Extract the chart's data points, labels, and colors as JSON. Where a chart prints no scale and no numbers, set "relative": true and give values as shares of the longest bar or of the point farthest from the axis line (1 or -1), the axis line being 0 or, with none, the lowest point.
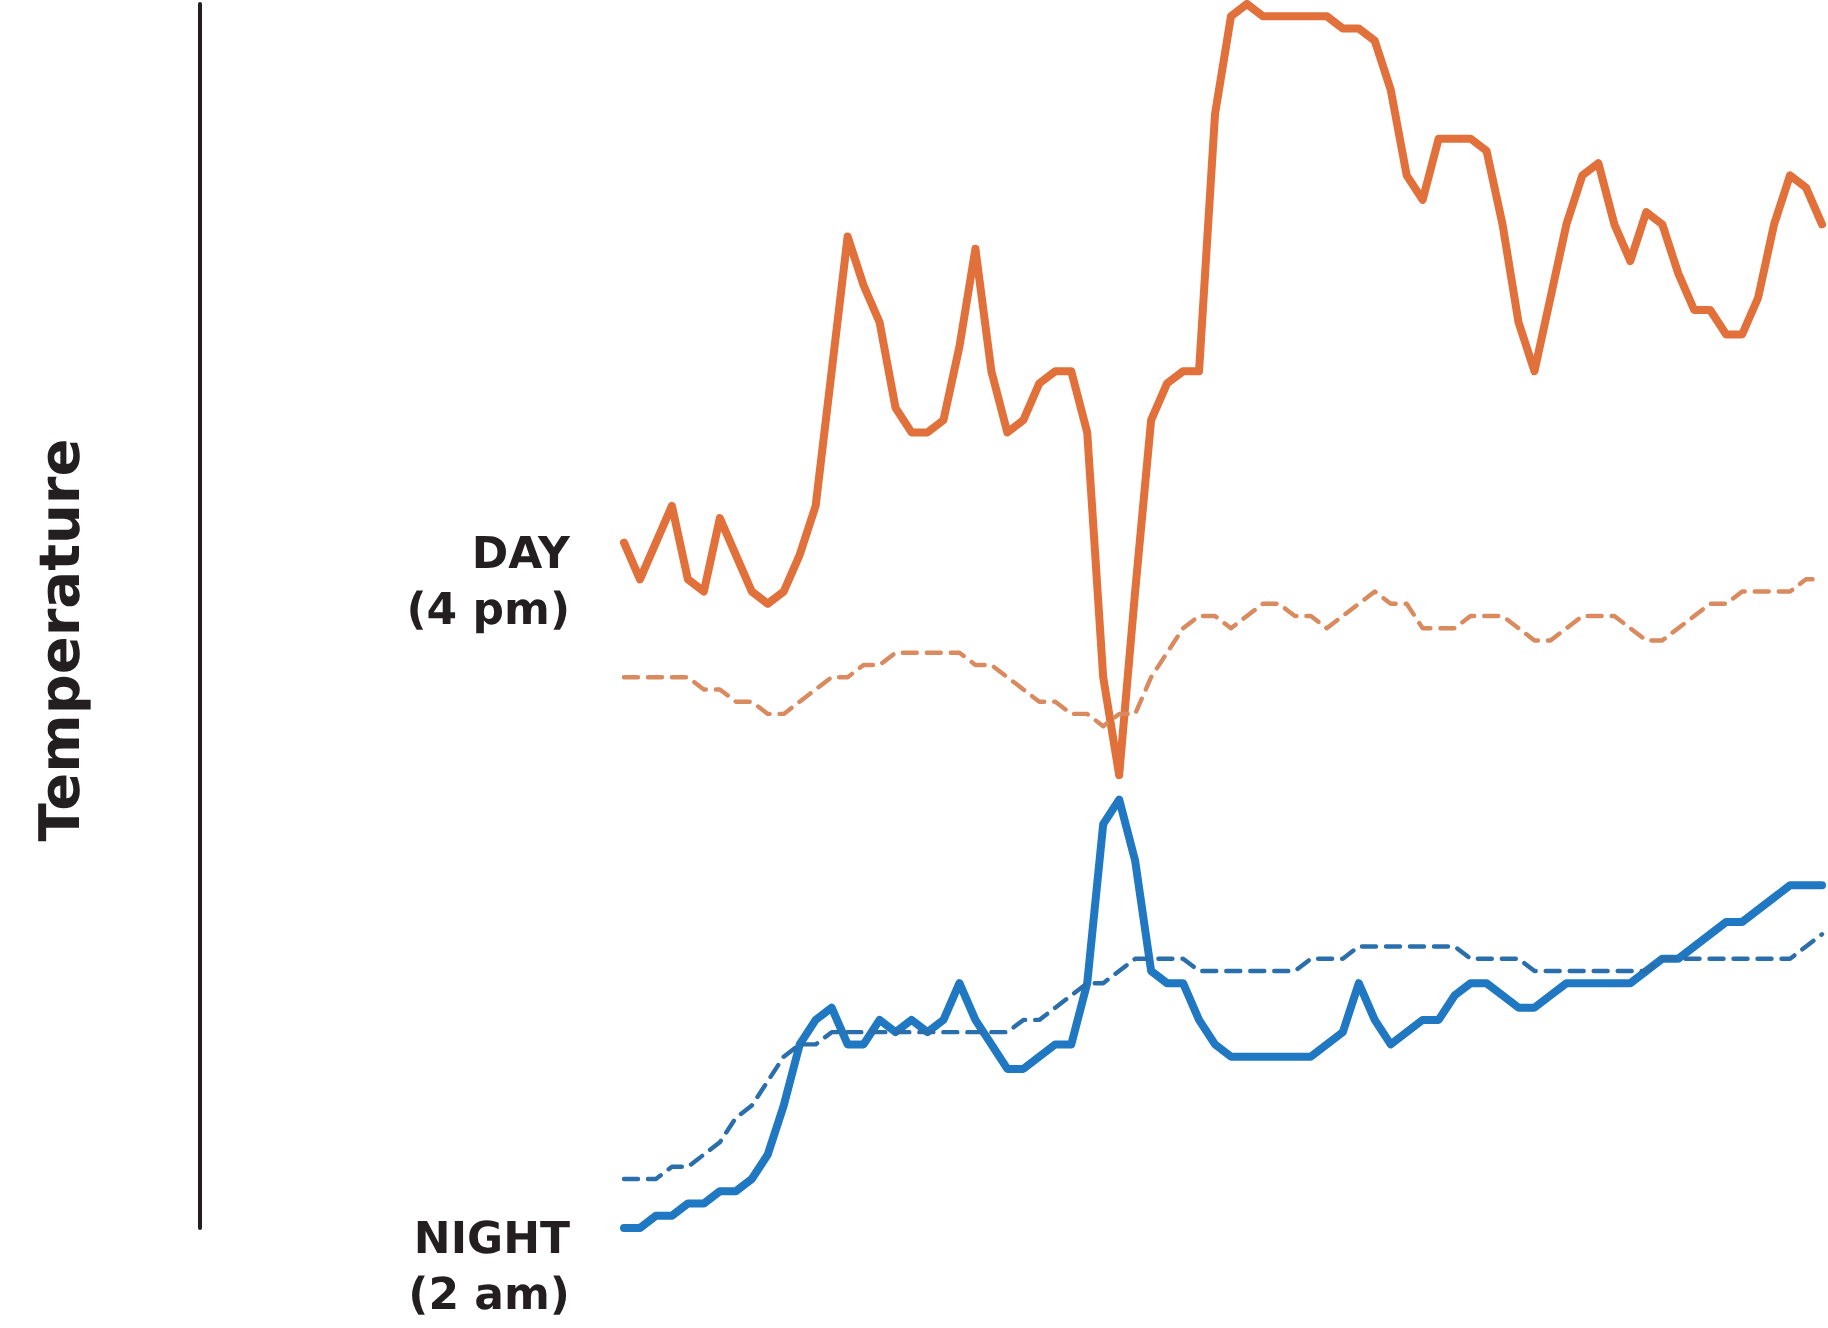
{
  "chart_data": {
    "type": "line",
    "relative": true,
    "annotations": [
      "Temperature"
    ],
    "legend": false,
    "marker": "none",
    "categories": [
      null,
      null,
      null,
      null,
      null,
      null,
      null,
      null,
      null,
      null,
      null,
      null,
      null,
      null,
      null,
      null,
      null,
      null,
      null,
      null,
      null,
      null,
      null,
      null,
      null,
      null,
      null,
      null,
      null,
      null,
      null,
      null,
      null,
      null,
      null,
      null,
      null,
      null,
      null,
      null,
      null,
      null,
      null,
      null,
      null,
      null,
      null,
      null,
      null,
      null,
      null,
      null,
      null,
      null,
      null,
      null,
      null,
      null,
      null,
      null,
      null,
      null,
      null,
      null,
      null,
      null,
      null,
      null,
      null,
      null,
      null,
      null,
      null,
      null,
      null,
      null
    ],
    "series": [
      {
        "name": "DAY\n(4 pm)",
        "color": "#e2703a",
        "line_style": "solid",
        "values": [
          0.56,
          0.53,
          0.56,
          0.59,
          0.53,
          0.52,
          0.58,
          0.55,
          0.52,
          0.51,
          0.52,
          0.55,
          0.59,
          0.7,
          0.81,
          0.77,
          0.74,
          0.67,
          0.65,
          0.65,
          0.66,
          0.72,
          0.8,
          0.7,
          0.65,
          0.66,
          0.69,
          0.7,
          0.7,
          0.65,
          0.45,
          0.37,
          0.52,
          0.66,
          0.69,
          0.7,
          0.7,
          0.91,
          0.99,
          1,
          0.99,
          0.99,
          0.99,
          0.99,
          0.99,
          0.98,
          0.98,
          0.97,
          0.93,
          0.86,
          0.84,
          0.89,
          0.89,
          0.89,
          0.88,
          0.82,
          0.74,
          0.7,
          0.76,
          0.82,
          0.86,
          0.87,
          0.82,
          0.79,
          0.83,
          0.82,
          0.78,
          0.75,
          0.75,
          0.73,
          0.73,
          0.76,
          0.82,
          0.86,
          0.85,
          0.82
        ]
      },
      {
        "color": "#d98a5e",
        "line_style": "dashed",
        "values": [
          0.45,
          0.45,
          0.45,
          0.45,
          0.45,
          0.44,
          0.44,
          0.43,
          0.43,
          0.42,
          0.42,
          0.43,
          0.44,
          0.45,
          0.45,
          0.46,
          0.46,
          0.47,
          0.47,
          0.47,
          0.47,
          0.47,
          0.46,
          0.46,
          0.45,
          0.44,
          0.43,
          0.43,
          0.42,
          0.42,
          0.41,
          0.42,
          0.42,
          0.45,
          0.47,
          0.49,
          0.5,
          0.5,
          0.49,
          0.5,
          0.51,
          0.51,
          0.5,
          0.5,
          0.49,
          0.5,
          0.51,
          0.52,
          0.51,
          0.51,
          0.49,
          0.49,
          0.49,
          0.5,
          0.5,
          0.5,
          0.49,
          0.48,
          0.48,
          0.49,
          0.5,
          0.5,
          0.5,
          0.49,
          0.48,
          0.48,
          0.49,
          0.5,
          0.51,
          0.51,
          0.52,
          0.52,
          0.52,
          0.52,
          0.53,
          0.53
        ]
      },
      {
        "name": "NIGHT\n(2 am)",
        "color": "#1f78c1",
        "line_style": "solid",
        "values": [
          0,
          0,
          0.01,
          0.01,
          0.02,
          0.02,
          0.03,
          0.03,
          0.04,
          0.06,
          0.1,
          0.15,
          0.17,
          0.18,
          0.15,
          0.15,
          0.17,
          0.16,
          0.17,
          0.16,
          0.17,
          0.2,
          0.17,
          0.15,
          0.13,
          0.13,
          0.14,
          0.15,
          0.15,
          0.2,
          0.33,
          0.35,
          0.3,
          0.21,
          0.2,
          0.2,
          0.17,
          0.15,
          0.14,
          0.14,
          0.14,
          0.14,
          0.14,
          0.14,
          0.15,
          0.16,
          0.2,
          0.17,
          0.15,
          0.16,
          0.17,
          0.17,
          0.19,
          0.2,
          0.2,
          0.19,
          0.18,
          0.18,
          0.19,
          0.2,
          0.2,
          0.2,
          0.2,
          0.2,
          0.21,
          0.22,
          0.22,
          0.23,
          0.24,
          0.25,
          0.25,
          0.26,
          0.27,
          0.28,
          0.28,
          0.28
        ]
      },
      {
        "color": "#2a6fab",
        "line_style": "dashed",
        "values": [
          0.04,
          0.04,
          0.04,
          0.05,
          0.05,
          0.06,
          0.07,
          0.09,
          0.1,
          0.12,
          0.14,
          0.15,
          0.15,
          0.16,
          0.16,
          0.16,
          0.16,
          0.16,
          0.16,
          0.16,
          0.16,
          0.16,
          0.16,
          0.16,
          0.16,
          0.17,
          0.17,
          0.18,
          0.19,
          0.2,
          0.2,
          0.21,
          0.22,
          0.22,
          0.22,
          0.22,
          0.21,
          0.21,
          0.21,
          0.21,
          0.21,
          0.21,
          0.21,
          0.22,
          0.22,
          0.22,
          0.23,
          0.23,
          0.23,
          0.23,
          0.23,
          0.23,
          0.23,
          0.22,
          0.22,
          0.22,
          0.22,
          0.21,
          0.21,
          0.21,
          0.21,
          0.21,
          0.21,
          0.21,
          0.21,
          0.22,
          0.22,
          0.22,
          0.22,
          0.22,
          0.22,
          0.22,
          0.22,
          0.22,
          0.23,
          0.24
        ]
      }
    ]
  }
}
